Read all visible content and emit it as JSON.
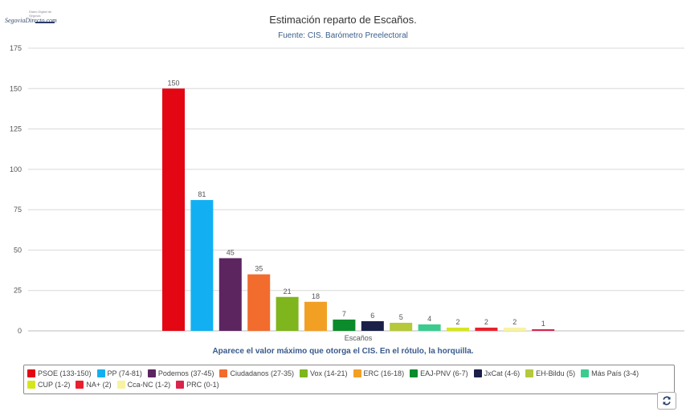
{
  "logo": {
    "small_text": "Diario Digital de Segovia",
    "name": "SegoviaDirecto.com"
  },
  "legend_items": [
    {
      "label": "PSOE (133-150)",
      "color": "#e30613"
    },
    {
      "label": "PP (74-81)",
      "color": "#12b0f2"
    },
    {
      "label": "Podemos (37-45)",
      "color": "#5c2560"
    },
    {
      "label": "Ciudadanos (27-35)",
      "color": "#f26c2e"
    },
    {
      "label": "Vox (14-21)",
      "color": "#7fb51d"
    },
    {
      "label": "ERC (16-18)",
      "color": "#f2a024"
    },
    {
      "label": "EAJ-PNV (6-7)",
      "color": "#0c8b2c"
    },
    {
      "label": "JxCat (4-6)",
      "color": "#1b2048"
    },
    {
      "label": "EH-Bildu (5)",
      "color": "#b5c93a"
    },
    {
      "label": "Más País (3-4)",
      "color": "#3ccb8e"
    },
    {
      "label": "CUP (1-2)",
      "color": "#d6e61e"
    },
    {
      "label": "NA+ (2)",
      "color": "#e8212c"
    },
    {
      "label": "Cca-NC (1-2)",
      "color": "#f7f3a0"
    },
    {
      "label": "PRC (0-1)",
      "color": "#d9244b"
    }
  ],
  "footnote": "Aparece el valor máximo que otorga el CIS. En el rótulo, la horquilla.",
  "refresh_icon": "refresh-icon",
  "chart_data": {
    "type": "bar",
    "title": "Estimación reparto de Escaños.",
    "subtitle": "Fuente: CIS. Barómetro Preelectoral",
    "xlabel": "Escaños",
    "ylabel": "",
    "ylim": [
      0,
      175
    ],
    "yticks": [
      0,
      25,
      50,
      75,
      100,
      125,
      150,
      175
    ],
    "grid": true,
    "categories": [
      "Escaños"
    ],
    "series": [
      {
        "name": "PSOE (133-150)",
        "values": [
          150
        ],
        "color": "#e30613"
      },
      {
        "name": "PP (74-81)",
        "values": [
          81
        ],
        "color": "#12b0f2"
      },
      {
        "name": "Podemos (37-45)",
        "values": [
          45
        ],
        "color": "#5c2560"
      },
      {
        "name": "Ciudadanos (27-35)",
        "values": [
          35
        ],
        "color": "#f26c2e"
      },
      {
        "name": "Vox (14-21)",
        "values": [
          21
        ],
        "color": "#7fb51d"
      },
      {
        "name": "ERC (16-18)",
        "values": [
          18
        ],
        "color": "#f2a024"
      },
      {
        "name": "EAJ-PNV (6-7)",
        "values": [
          7
        ],
        "color": "#0c8b2c"
      },
      {
        "name": "JxCat (4-6)",
        "values": [
          6
        ],
        "color": "#1b2048"
      },
      {
        "name": "EH-Bildu (5)",
        "values": [
          5
        ],
        "color": "#b5c93a"
      },
      {
        "name": "Más País (3-4)",
        "values": [
          4
        ],
        "color": "#3ccb8e"
      },
      {
        "name": "CUP (1-2)",
        "values": [
          2
        ],
        "color": "#d6e61e"
      },
      {
        "name": "NA+ (2)",
        "values": [
          2
        ],
        "color": "#e8212c"
      },
      {
        "name": "Cca-NC (1-2)",
        "values": [
          2
        ],
        "color": "#f7f3a0"
      },
      {
        "name": "PRC (0-1)",
        "values": [
          1
        ],
        "color": "#d9244b"
      }
    ],
    "legend_position": "bottom"
  }
}
